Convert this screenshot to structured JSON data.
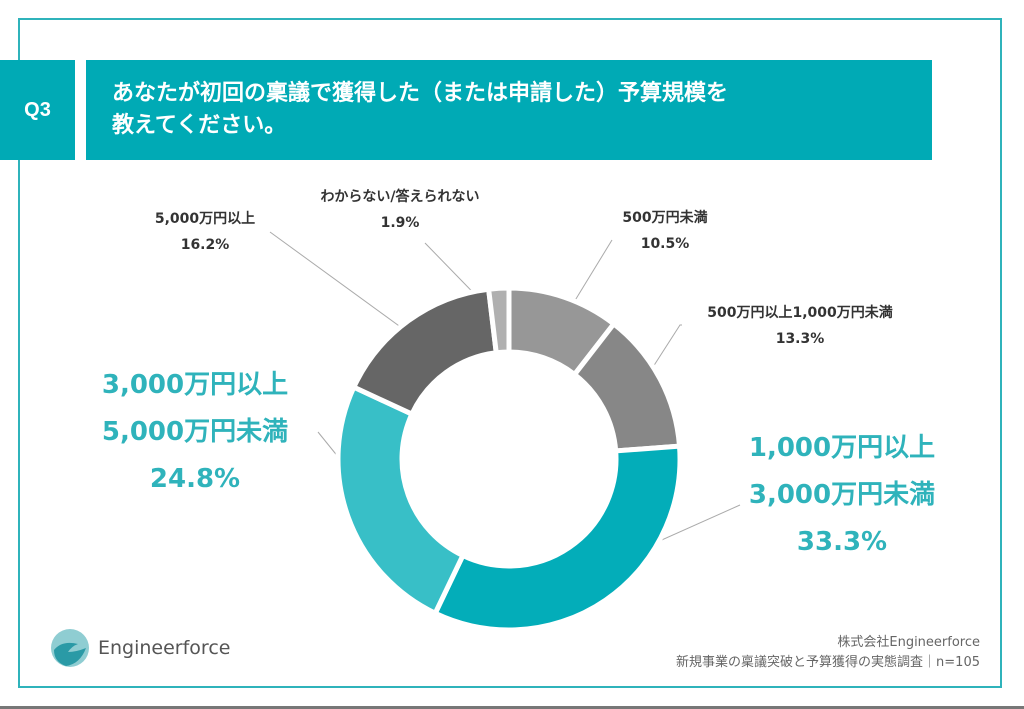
{
  "question": {
    "number": "Q3",
    "text_line1": "あなたが初回の稟議で獲得した（または申請した）予算規模を",
    "text_line2": "教えてください。"
  },
  "chart_data": {
    "type": "pie",
    "donut": true,
    "start": "top",
    "direction": "clockwise",
    "slices": [
      {
        "label": "500万円未満",
        "value": 10.5,
        "value_label": "10.5%",
        "color": "#979797"
      },
      {
        "label": "500万円以上1,000万円未満",
        "value": 13.3,
        "value_label": "13.3%",
        "color": "#878787"
      },
      {
        "label_line1": "1,000万円以上",
        "label_line2": "3,000万円未満",
        "value": 33.3,
        "value_label": "33.3%",
        "color": "#03adb9"
      },
      {
        "label_line1": "3,000万円以上",
        "label_line2": "5,000万円未満",
        "value": 24.8,
        "value_label": "24.8%",
        "color": "#38bfc7"
      },
      {
        "label": "5,000万円以上",
        "value": 16.2,
        "value_label": "16.2%",
        "color": "#666666"
      },
      {
        "label": "わからない/答えられない",
        "value": 1.9,
        "value_label": "1.9%",
        "color": "#b0b0b0"
      }
    ]
  },
  "footer": {
    "logo_text": "Engineerforce",
    "company": "株式会社Engineerforce",
    "survey": "新規事業の稟議突破と予算獲得の実態調査｜n=105"
  }
}
